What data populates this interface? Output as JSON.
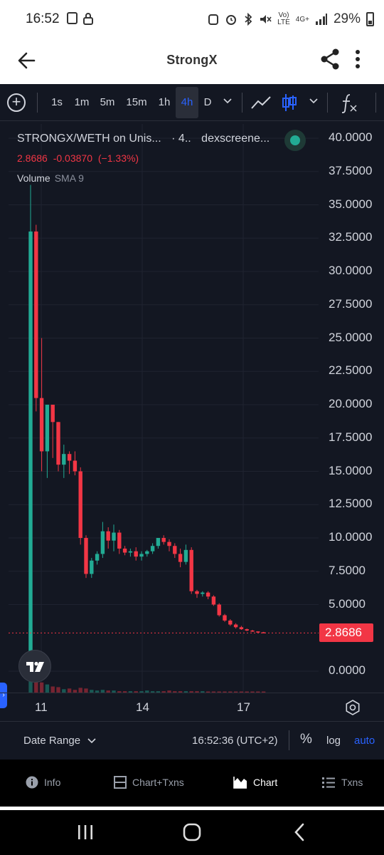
{
  "status_bar": {
    "time": "16:52",
    "network": "4G+",
    "network_sub": "LTE",
    "battery": "29%"
  },
  "app_bar": {
    "title": "StrongX"
  },
  "toolbar": {
    "timeframes": [
      "1s",
      "1m",
      "5m",
      "15m",
      "1h",
      "4h",
      "D"
    ],
    "active_timeframe": "4h"
  },
  "legend": {
    "symbol": "STRONGX/WETH on Unis...",
    "interval": "· 4..",
    "source": "dexscreene...",
    "price": "2.8686",
    "change": "-0.03870",
    "change_pct": "(−1.33%)",
    "volume_label": "Volume",
    "sma_label": "SMA 9"
  },
  "colors": {
    "up": "#22ab94",
    "down": "#f23645",
    "background": "#131722",
    "accent": "#2962ff"
  },
  "chart_data": {
    "type": "candlestick",
    "symbol": "STRONGX/WETH",
    "interval": "4h",
    "last_price": 2.8686,
    "y_axis": {
      "ticks": [
        "40.0000",
        "37.5000",
        "35.0000",
        "32.5000",
        "30.0000",
        "27.5000",
        "25.0000",
        "22.5000",
        "20.0000",
        "17.5000",
        "15.0000",
        "12.5000",
        "10.0000",
        "7.5000",
        "5.0000",
        "0.0000"
      ],
      "ylim": [
        0,
        40
      ]
    },
    "x_axis": {
      "ticks": [
        "11",
        "14",
        "17"
      ]
    },
    "candles": [
      {
        "o": 1.0,
        "h": 36.5,
        "l": 0.5,
        "c": 33.0
      },
      {
        "o": 33.0,
        "h": 33.5,
        "l": 19.5,
        "c": 20.5
      },
      {
        "o": 20.5,
        "h": 25.0,
        "l": 15.0,
        "c": 16.5
      },
      {
        "o": 16.5,
        "h": 20.0,
        "l": 14.5,
        "c": 20.0
      },
      {
        "o": 20.0,
        "h": 20.0,
        "l": 16.0,
        "c": 18.7
      },
      {
        "o": 18.7,
        "h": 18.7,
        "l": 15.0,
        "c": 15.5
      },
      {
        "o": 15.5,
        "h": 17.0,
        "l": 14.5,
        "c": 16.3
      },
      {
        "o": 16.3,
        "h": 16.5,
        "l": 14.8,
        "c": 15.8
      },
      {
        "o": 15.8,
        "h": 16.5,
        "l": 14.7,
        "c": 15.0
      },
      {
        "o": 15.0,
        "h": 15.3,
        "l": 9.5,
        "c": 10.0
      },
      {
        "o": 10.0,
        "h": 10.2,
        "l": 7.0,
        "c": 7.3
      },
      {
        "o": 7.3,
        "h": 8.5,
        "l": 7.0,
        "c": 8.3
      },
      {
        "o": 8.3,
        "h": 9.0,
        "l": 8.0,
        "c": 8.8
      },
      {
        "o": 8.8,
        "h": 11.2,
        "l": 8.5,
        "c": 10.5
      },
      {
        "o": 10.5,
        "h": 10.8,
        "l": 9.2,
        "c": 9.8
      },
      {
        "o": 9.8,
        "h": 11.0,
        "l": 9.0,
        "c": 10.4
      },
      {
        "o": 10.4,
        "h": 10.6,
        "l": 8.8,
        "c": 9.2
      },
      {
        "o": 9.2,
        "h": 9.4,
        "l": 8.7,
        "c": 8.9
      },
      {
        "o": 8.9,
        "h": 9.2,
        "l": 8.6,
        "c": 9.0
      },
      {
        "o": 9.0,
        "h": 9.3,
        "l": 8.3,
        "c": 8.6
      },
      {
        "o": 8.6,
        "h": 9.0,
        "l": 8.3,
        "c": 8.8
      },
      {
        "o": 8.8,
        "h": 9.1,
        "l": 8.6,
        "c": 9.0
      },
      {
        "o": 9.0,
        "h": 9.6,
        "l": 8.8,
        "c": 9.4
      },
      {
        "o": 9.4,
        "h": 10.0,
        "l": 9.2,
        "c": 10.0
      },
      {
        "o": 10.0,
        "h": 10.2,
        "l": 9.5,
        "c": 9.7
      },
      {
        "o": 9.7,
        "h": 9.9,
        "l": 9.0,
        "c": 9.4
      },
      {
        "o": 9.4,
        "h": 9.6,
        "l": 8.5,
        "c": 8.8
      },
      {
        "o": 8.8,
        "h": 9.2,
        "l": 7.8,
        "c": 8.2
      },
      {
        "o": 8.2,
        "h": 9.5,
        "l": 8.0,
        "c": 9.1
      },
      {
        "o": 9.1,
        "h": 9.3,
        "l": 5.8,
        "c": 6.0
      },
      {
        "o": 6.0,
        "h": 6.1,
        "l": 5.5,
        "c": 5.8
      },
      {
        "o": 5.8,
        "h": 6.0,
        "l": 5.6,
        "c": 5.9
      },
      {
        "o": 5.9,
        "h": 6.0,
        "l": 5.4,
        "c": 5.6
      },
      {
        "o": 5.6,
        "h": 5.7,
        "l": 4.9,
        "c": 5.0
      },
      {
        "o": 5.0,
        "h": 5.1,
        "l": 4.1,
        "c": 4.2
      },
      {
        "o": 4.2,
        "h": 4.3,
        "l": 3.7,
        "c": 3.8
      },
      {
        "o": 3.8,
        "h": 3.9,
        "l": 3.4,
        "c": 3.5
      },
      {
        "o": 3.5,
        "h": 3.6,
        "l": 3.2,
        "c": 3.3
      },
      {
        "o": 3.3,
        "h": 3.4,
        "l": 3.1,
        "c": 3.15
      },
      {
        "o": 3.15,
        "h": 3.2,
        "l": 3.0,
        "c": 3.05
      },
      {
        "o": 3.05,
        "h": 3.1,
        "l": 2.95,
        "c": 2.98
      },
      {
        "o": 2.98,
        "h": 3.0,
        "l": 2.9,
        "c": 2.92
      },
      {
        "o": 2.92,
        "h": 2.95,
        "l": 2.86,
        "c": 2.87
      }
    ],
    "volume": [
      95,
      22,
      15,
      12,
      9,
      8,
      5,
      6,
      4,
      7,
      6,
      4,
      3,
      4,
      3,
      3,
      2,
      2,
      2,
      2,
      2,
      3,
      2,
      2,
      2,
      3,
      2,
      2,
      2,
      2,
      2,
      2,
      1,
      1,
      1,
      1,
      1,
      1,
      1,
      1,
      1,
      1,
      1
    ]
  },
  "bottom_bar": {
    "date_range": "Date Range",
    "clock": "16:52:36 (UTC+2)",
    "pct": "%",
    "log": "log",
    "auto": "auto"
  },
  "tabs": [
    {
      "label": "Info",
      "icon": "info-icon"
    },
    {
      "label": "Chart+Txns",
      "icon": "split-view-icon"
    },
    {
      "label": "Chart",
      "icon": "area-chart-icon",
      "active": true
    },
    {
      "label": "Txns",
      "icon": "list-icon"
    }
  ]
}
